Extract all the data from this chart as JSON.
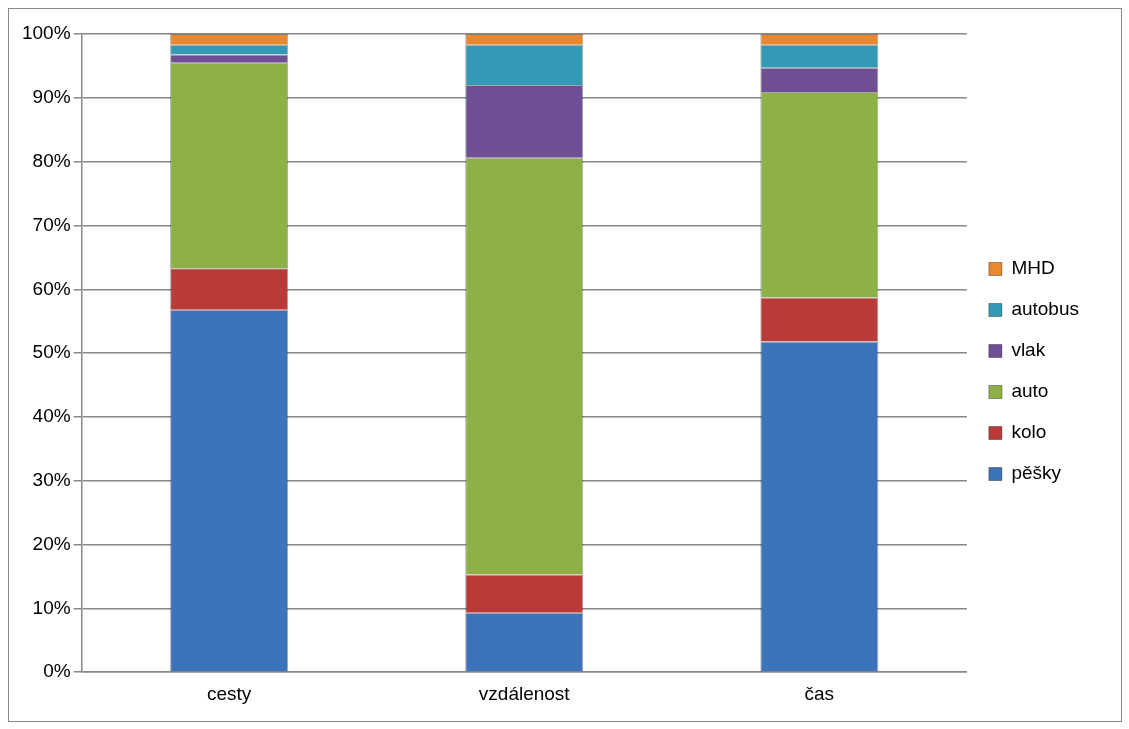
{
  "chart_data": {
    "type": "bar",
    "stacked": true,
    "categories": [
      "cesty",
      "vzdálenost",
      "čas"
    ],
    "series": [
      {
        "name": "pěšky",
        "color": "#3d74b9",
        "values": [
          56.8,
          9.3,
          51.8
        ]
      },
      {
        "name": "kolo",
        "color": "#b93a37",
        "values": [
          6.5,
          6.0,
          6.9
        ]
      },
      {
        "name": "auto",
        "color": "#8db047",
        "values": [
          32.2,
          65.3,
          32.2
        ]
      },
      {
        "name": "vlak",
        "color": "#6e4f94",
        "values": [
          1.3,
          11.4,
          3.8
        ]
      },
      {
        "name": "autobus",
        "color": "#3399b4",
        "values": [
          1.5,
          6.3,
          3.6
        ]
      },
      {
        "name": "MHD",
        "color": "#e8882f",
        "values": [
          1.7,
          1.7,
          1.7
        ]
      }
    ],
    "ylim": [
      0,
      100
    ],
    "yticks": [
      {
        "value": 0,
        "label": "0%"
      },
      {
        "value": 10,
        "label": "10%"
      },
      {
        "value": 20,
        "label": "20%"
      },
      {
        "value": 30,
        "label": "30%"
      },
      {
        "value": 40,
        "label": "40%"
      },
      {
        "value": 50,
        "label": "50%"
      },
      {
        "value": 60,
        "label": "60%"
      },
      {
        "value": 70,
        "label": "70%"
      },
      {
        "value": 80,
        "label": "80%"
      },
      {
        "value": 90,
        "label": "90%"
      },
      {
        "value": 100,
        "label": "100%"
      }
    ],
    "grid": "y",
    "legend": "right"
  }
}
